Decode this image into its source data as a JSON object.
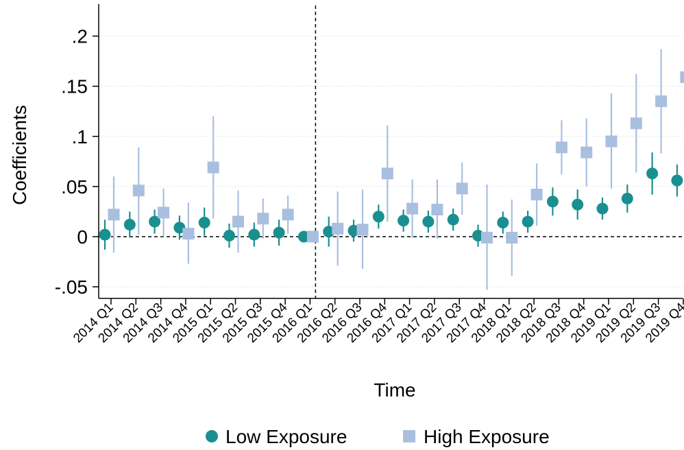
{
  "chart_data": {
    "type": "scatter",
    "xlabel": "Time",
    "ylabel": "Coefficients",
    "categories": [
      "2014 Q1",
      "2014 Q2",
      "2014 Q3",
      "2014 Q4",
      "2015 Q1",
      "2015 Q2",
      "2015 Q3",
      "2015 Q4",
      "2016 Q1",
      "2016 Q2",
      "2016 Q3",
      "2016 Q4",
      "2017 Q1",
      "2017 Q2",
      "2017 Q3",
      "2017 Q4",
      "2018 Q1",
      "2018 Q2",
      "2018 Q3",
      "2018 Q4",
      "2019 Q1",
      "2019 Q2",
      "2019 Q3",
      "2019 Q4"
    ],
    "y_ticks": [
      -0.05,
      0,
      0.05,
      0.1,
      0.15,
      0.2
    ],
    "y_tick_labels": [
      "-.05",
      "0",
      ".05",
      ".1",
      ".15",
      ".2"
    ],
    "ylim": [
      -0.06,
      0.225
    ],
    "grid": true,
    "reference_line_y": 0,
    "reference_line_category": "2016 Q1",
    "legend_position": "bottom",
    "series": [
      {
        "name": "Low Exposure",
        "marker": "circle",
        "color": "#1a8f8f",
        "values": [
          0.002,
          0.012,
          0.015,
          0.009,
          0.014,
          0.001,
          0.002,
          0.004,
          0.0,
          0.005,
          0.006,
          0.02,
          0.016,
          0.015,
          0.017,
          0.001,
          0.014,
          0.015,
          0.035,
          0.032,
          0.028,
          0.038,
          0.063,
          0.056
        ],
        "ci_low": [
          -0.013,
          -0.001,
          0.003,
          -0.003,
          0.001,
          -0.011,
          -0.01,
          -0.009,
          0.0,
          -0.01,
          -0.005,
          0.008,
          0.005,
          0.004,
          0.006,
          -0.01,
          0.003,
          0.004,
          0.021,
          0.017,
          0.017,
          0.024,
          0.042,
          0.04
        ],
        "ci_high": [
          0.017,
          0.025,
          0.027,
          0.021,
          0.029,
          0.013,
          0.014,
          0.017,
          0.0,
          0.02,
          0.017,
          0.032,
          0.027,
          0.026,
          0.028,
          0.012,
          0.025,
          0.026,
          0.049,
          0.047,
          0.039,
          0.052,
          0.084,
          0.072
        ]
      },
      {
        "name": "High Exposure",
        "marker": "square",
        "color": "#a9bfe0",
        "values": [
          0.022,
          0.046,
          0.024,
          0.003,
          0.069,
          0.015,
          0.018,
          0.022,
          0.0,
          0.008,
          0.007,
          0.063,
          0.028,
          0.027,
          0.048,
          -0.001,
          -0.001,
          0.042,
          0.089,
          0.084,
          0.095,
          0.113,
          0.135,
          0.159
        ],
        "ci_low": [
          -0.016,
          0.002,
          0.0,
          -0.027,
          0.018,
          -0.016,
          -0.002,
          0.003,
          0.0,
          -0.029,
          -0.032,
          0.015,
          -0.001,
          -0.002,
          0.022,
          -0.053,
          -0.039,
          0.011,
          0.062,
          0.05,
          0.048,
          0.064,
          0.083,
          0.102
        ],
        "ci_high": [
          0.06,
          0.089,
          0.048,
          0.034,
          0.12,
          0.046,
          0.038,
          0.041,
          0.0,
          0.045,
          0.047,
          0.111,
          0.057,
          0.057,
          0.074,
          0.052,
          0.037,
          0.073,
          0.116,
          0.118,
          0.143,
          0.162,
          0.187,
          0.216
        ]
      }
    ]
  }
}
